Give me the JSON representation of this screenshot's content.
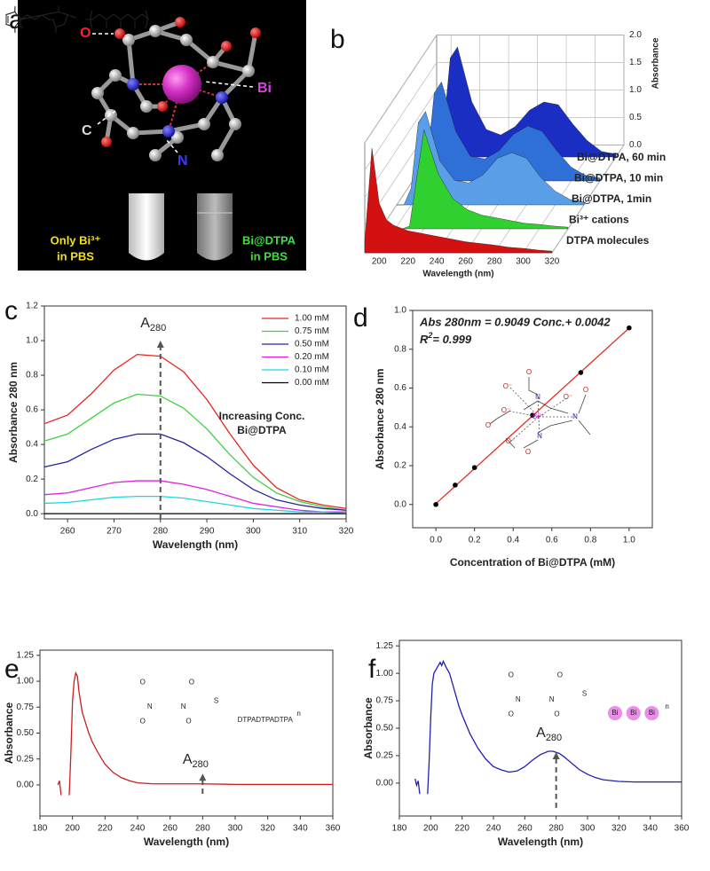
{
  "panel_a": {
    "panel": "a",
    "atom_labels": [
      "O",
      "C",
      "N",
      "Bi"
    ],
    "tube_labels": [
      [
        "Only Bi³⁺",
        "in PBS"
      ],
      [
        "Bi@DTPA",
        "in PBS"
      ]
    ]
  },
  "chart_data": [
    {
      "panel": "b",
      "type": "waterfall",
      "xlabel": "Wavelength (nm)",
      "zlabel": "Absorbance",
      "x": [
        190,
        195,
        200,
        205,
        210,
        220,
        230,
        240,
        250,
        260,
        270,
        280,
        290,
        300,
        310,
        320
      ],
      "xlim": [
        190,
        320
      ],
      "xticks": [
        200,
        220,
        240,
        260,
        280,
        300,
        320
      ],
      "zlim": [
        0,
        2
      ],
      "zticks": [
        {
          "value": 0,
          "label": "0.0"
        },
        {
          "value": 0.5,
          "label": "0.5"
        },
        {
          "value": 1,
          "label": "1.0"
        },
        {
          "value": 1.5,
          "label": "1.5"
        },
        {
          "value": 2,
          "label": "2.0"
        }
      ],
      "series": [
        {
          "name": "DTPA molecules",
          "color": "#d41010",
          "values": [
            0.2,
            1.9,
            0.9,
            0.6,
            0.5,
            0.4,
            0.35,
            0.3,
            0.25,
            0.2,
            0.17,
            0.14,
            0.1,
            0.08,
            0.05,
            0.03
          ]
        },
        {
          "name": "Bi³⁺ cations",
          "color": "#2fd02f",
          "values": [
            0,
            0,
            0,
            0,
            0.05,
            1.8,
            1.0,
            0.55,
            0.35,
            0.25,
            0.2,
            0.15,
            0.1,
            0.08,
            0.05,
            0.03
          ]
        },
        {
          "name": "Bi@DTPA, 1min",
          "color": "#5a9ee8",
          "values": [
            0,
            0,
            0.3,
            1.5,
            1.7,
            0.8,
            0.45,
            0.4,
            0.55,
            0.85,
            0.95,
            0.85,
            0.5,
            0.25,
            0.1,
            0.05
          ]
        },
        {
          "name": "Bi@DTPA, 10 min",
          "color": "#2f6fd8",
          "values": [
            0,
            0,
            0.3,
            1.6,
            1.8,
            0.9,
            0.45,
            0.4,
            0.55,
            0.85,
            1.0,
            0.9,
            0.55,
            0.25,
            0.1,
            0.05
          ]
        },
        {
          "name": "Bi@DTPA, 60 min",
          "color": "#1a2ec4",
          "values": [
            0,
            0,
            0.4,
            1.8,
            2.0,
            1.0,
            0.5,
            0.4,
            0.55,
            0.85,
            1.0,
            0.95,
            0.6,
            0.3,
            0.1,
            0.05
          ]
        }
      ]
    },
    {
      "panel": "c",
      "type": "line",
      "xlabel": "Wavelength (nm)",
      "ylabel": "Absorbance 280 nm",
      "x": [
        255,
        260,
        265,
        270,
        275,
        280,
        285,
        290,
        295,
        300,
        305,
        310,
        315,
        320
      ],
      "xlim": [
        255,
        320
      ],
      "xticks": [
        260,
        270,
        280,
        290,
        300,
        310,
        320
      ],
      "ylim": [
        -0.03,
        1.2
      ],
      "yticks": [
        {
          "value": 0,
          "label": "0.0"
        },
        {
          "value": 0.2,
          "label": "0.2"
        },
        {
          "value": 0.4,
          "label": "0.4"
        },
        {
          "value": 0.6,
          "label": "0.6"
        },
        {
          "value": 0.8,
          "label": "0.8"
        },
        {
          "value": 1,
          "label": "1.0"
        },
        {
          "value": 1.2,
          "label": "1.2"
        }
      ],
      "annotation": {
        "text": "A",
        "subscript": 280
      },
      "note": [
        "Increasing Conc.",
        "Bi@DTPA"
      ],
      "series": [
        {
          "name": "1.00 mM",
          "color": "#e8251f",
          "values": [
            0.52,
            0.57,
            0.69,
            0.83,
            0.92,
            0.91,
            0.82,
            0.66,
            0.46,
            0.28,
            0.15,
            0.08,
            0.05,
            0.03
          ]
        },
        {
          "name": "0.75 mM",
          "color": "#3fd13f",
          "values": [
            0.42,
            0.46,
            0.55,
            0.64,
            0.69,
            0.68,
            0.61,
            0.49,
            0.34,
            0.21,
            0.12,
            0.07,
            0.04,
            0.02
          ]
        },
        {
          "name": "0.50 mM",
          "color": "#24249e",
          "values": [
            0.27,
            0.3,
            0.37,
            0.43,
            0.46,
            0.46,
            0.41,
            0.33,
            0.23,
            0.14,
            0.08,
            0.05,
            0.03,
            0.02
          ]
        },
        {
          "name": "0.20 mM",
          "color": "#e020e0",
          "values": [
            0.11,
            0.12,
            0.15,
            0.18,
            0.19,
            0.19,
            0.17,
            0.14,
            0.1,
            0.06,
            0.04,
            0.02,
            0.01,
            0.01
          ]
        },
        {
          "name": "0.10 mM",
          "color": "#1fd6e0",
          "values": [
            0.06,
            0.065,
            0.08,
            0.095,
            0.1,
            0.1,
            0.09,
            0.07,
            0.05,
            0.03,
            0.02,
            0.01,
            0.01,
            0.0
          ]
        },
        {
          "name": "0.00 mM",
          "color": "#000000",
          "values": [
            0,
            0,
            0,
            0,
            0,
            0,
            0,
            0,
            0,
            0,
            0,
            0,
            0,
            0
          ]
        }
      ]
    },
    {
      "panel": "d",
      "type": "scatter",
      "xlabel": "Concentration of Bi@DTPA  (mM)",
      "ylabel": "Absorbance 280 nm",
      "x": [
        0,
        0.1,
        0.2,
        0.5,
        0.75,
        1.0
      ],
      "values": [
        0.0,
        0.1,
        0.19,
        0.46,
        0.68,
        0.91
      ],
      "color": "#000000",
      "fit": {
        "x": [
          0,
          1
        ],
        "values": [
          0.0042,
          0.9091
        ],
        "color": "#e03020"
      },
      "xlim": [
        -0.12,
        1.12
      ],
      "xticks": [
        {
          "value": 0,
          "label": "0.0"
        },
        {
          "value": 0.2,
          "label": "0.2"
        },
        {
          "value": 0.4,
          "label": "0.4"
        },
        {
          "value": 0.6,
          "label": "0.6"
        },
        {
          "value": 0.8,
          "label": "0.8"
        },
        {
          "value": 1,
          "label": "1.0"
        }
      ],
      "ylim": [
        -0.12,
        1.0
      ],
      "yticks": [
        {
          "value": 0,
          "label": "0.0"
        },
        {
          "value": 0.2,
          "label": "0.2"
        },
        {
          "value": 0.4,
          "label": "0.4"
        },
        {
          "value": 0.6,
          "label": "0.6"
        },
        {
          "value": 0.8,
          "label": "0.8"
        },
        {
          "value": 1,
          "label": "1.0"
        }
      ],
      "equation": "Abs 280nm  = 0.9049 Conc.+ 0.0042",
      "r2": [
        "R",
        "2",
        "= 0.999"
      ],
      "inset_labels": [
        "O",
        "O⁻",
        "N",
        "O⁻",
        "O",
        "Bi³⁺",
        "N",
        "O⁻",
        "O",
        "N",
        "O⁻",
        "O"
      ]
    },
    {
      "panel": "e",
      "type": "line",
      "xlabel": "Wavelength (nm)",
      "ylabel": "Absorbance",
      "color": "#c8201e",
      "x": [
        191,
        192,
        193,
        195,
        198,
        199,
        200,
        201,
        202,
        203,
        204,
        206,
        208,
        210,
        212,
        215,
        218,
        220,
        225,
        230,
        235,
        240,
        250,
        260,
        280,
        300,
        320,
        340,
        360
      ],
      "values": [
        0.0,
        0.04,
        -0.1,
        null,
        -0.1,
        0.3,
        0.8,
        1.0,
        1.08,
        1.05,
        0.9,
        0.7,
        0.6,
        0.5,
        0.42,
        0.33,
        0.25,
        0.2,
        0.12,
        0.07,
        0.04,
        0.02,
        0.01,
        0.01,
        0.01,
        0.005,
        0.005,
        0.005,
        0.005
      ],
      "xlim": [
        180,
        360
      ],
      "xticks": [
        180,
        200,
        220,
        240,
        260,
        280,
        300,
        320,
        340,
        360
      ],
      "ylim": [
        -0.3,
        1.3
      ],
      "yticks": [
        {
          "value": 0,
          "label": "0.00"
        },
        {
          "value": 0.25,
          "label": "0.25"
        },
        {
          "value": 0.5,
          "label": "0.50"
        },
        {
          "value": 0.75,
          "label": "0.75"
        },
        {
          "value": 1,
          "label": "1.00"
        },
        {
          "value": 1.25,
          "label": "1.25"
        }
      ],
      "annotation": {
        "text": "A",
        "subscript": 280
      },
      "inset_labels": [
        "O",
        "O",
        "N",
        "N",
        "O",
        "O",
        "S",
        "DTPA",
        "DTPA",
        "DTPA",
        "n"
      ]
    },
    {
      "panel": "f",
      "type": "line",
      "xlabel": "Wavelength (nm)",
      "ylabel": "Absorbance",
      "color": "#2020b0",
      "x": [
        190,
        191,
        192,
        193,
        195,
        198,
        199,
        200,
        201,
        202,
        204,
        206,
        207,
        208,
        210,
        212,
        215,
        218,
        220,
        225,
        230,
        235,
        240,
        245,
        250,
        255,
        260,
        265,
        270,
        275,
        278,
        282,
        285,
        290,
        295,
        300,
        305,
        310,
        320,
        330,
        340,
        360
      ],
      "values": [
        0.04,
        -0.02,
        0.02,
        -0.1,
        null,
        -0.1,
        0.2,
        0.6,
        0.9,
        1.0,
        1.05,
        1.1,
        1.07,
        1.11,
        1.05,
        1.0,
        0.85,
        0.7,
        0.62,
        0.45,
        0.32,
        0.22,
        0.15,
        0.12,
        0.1,
        0.11,
        0.15,
        0.21,
        0.26,
        0.29,
        0.29,
        0.27,
        0.24,
        0.18,
        0.12,
        0.08,
        0.05,
        0.03,
        0.015,
        0.01,
        0.01,
        0.01
      ],
      "xlim": [
        180,
        360
      ],
      "xticks": [
        180,
        200,
        220,
        240,
        260,
        280,
        300,
        320,
        340,
        360
      ],
      "ylim": [
        -0.3,
        1.3
      ],
      "yticks": [
        {
          "value": 0,
          "label": "0.00"
        },
        {
          "value": 0.25,
          "label": "0.25"
        },
        {
          "value": 0.5,
          "label": "0.50"
        },
        {
          "value": 0.75,
          "label": "0.75"
        },
        {
          "value": 1,
          "label": "1.00"
        },
        {
          "value": 1.25,
          "label": "1.25"
        }
      ],
      "annotation": {
        "text": "A",
        "subscript": 280
      },
      "inset_labels": [
        "O",
        "O",
        "N",
        "N",
        "O",
        "O",
        "S",
        "Bi",
        "Bi",
        "Bi",
        "n"
      ]
    }
  ]
}
